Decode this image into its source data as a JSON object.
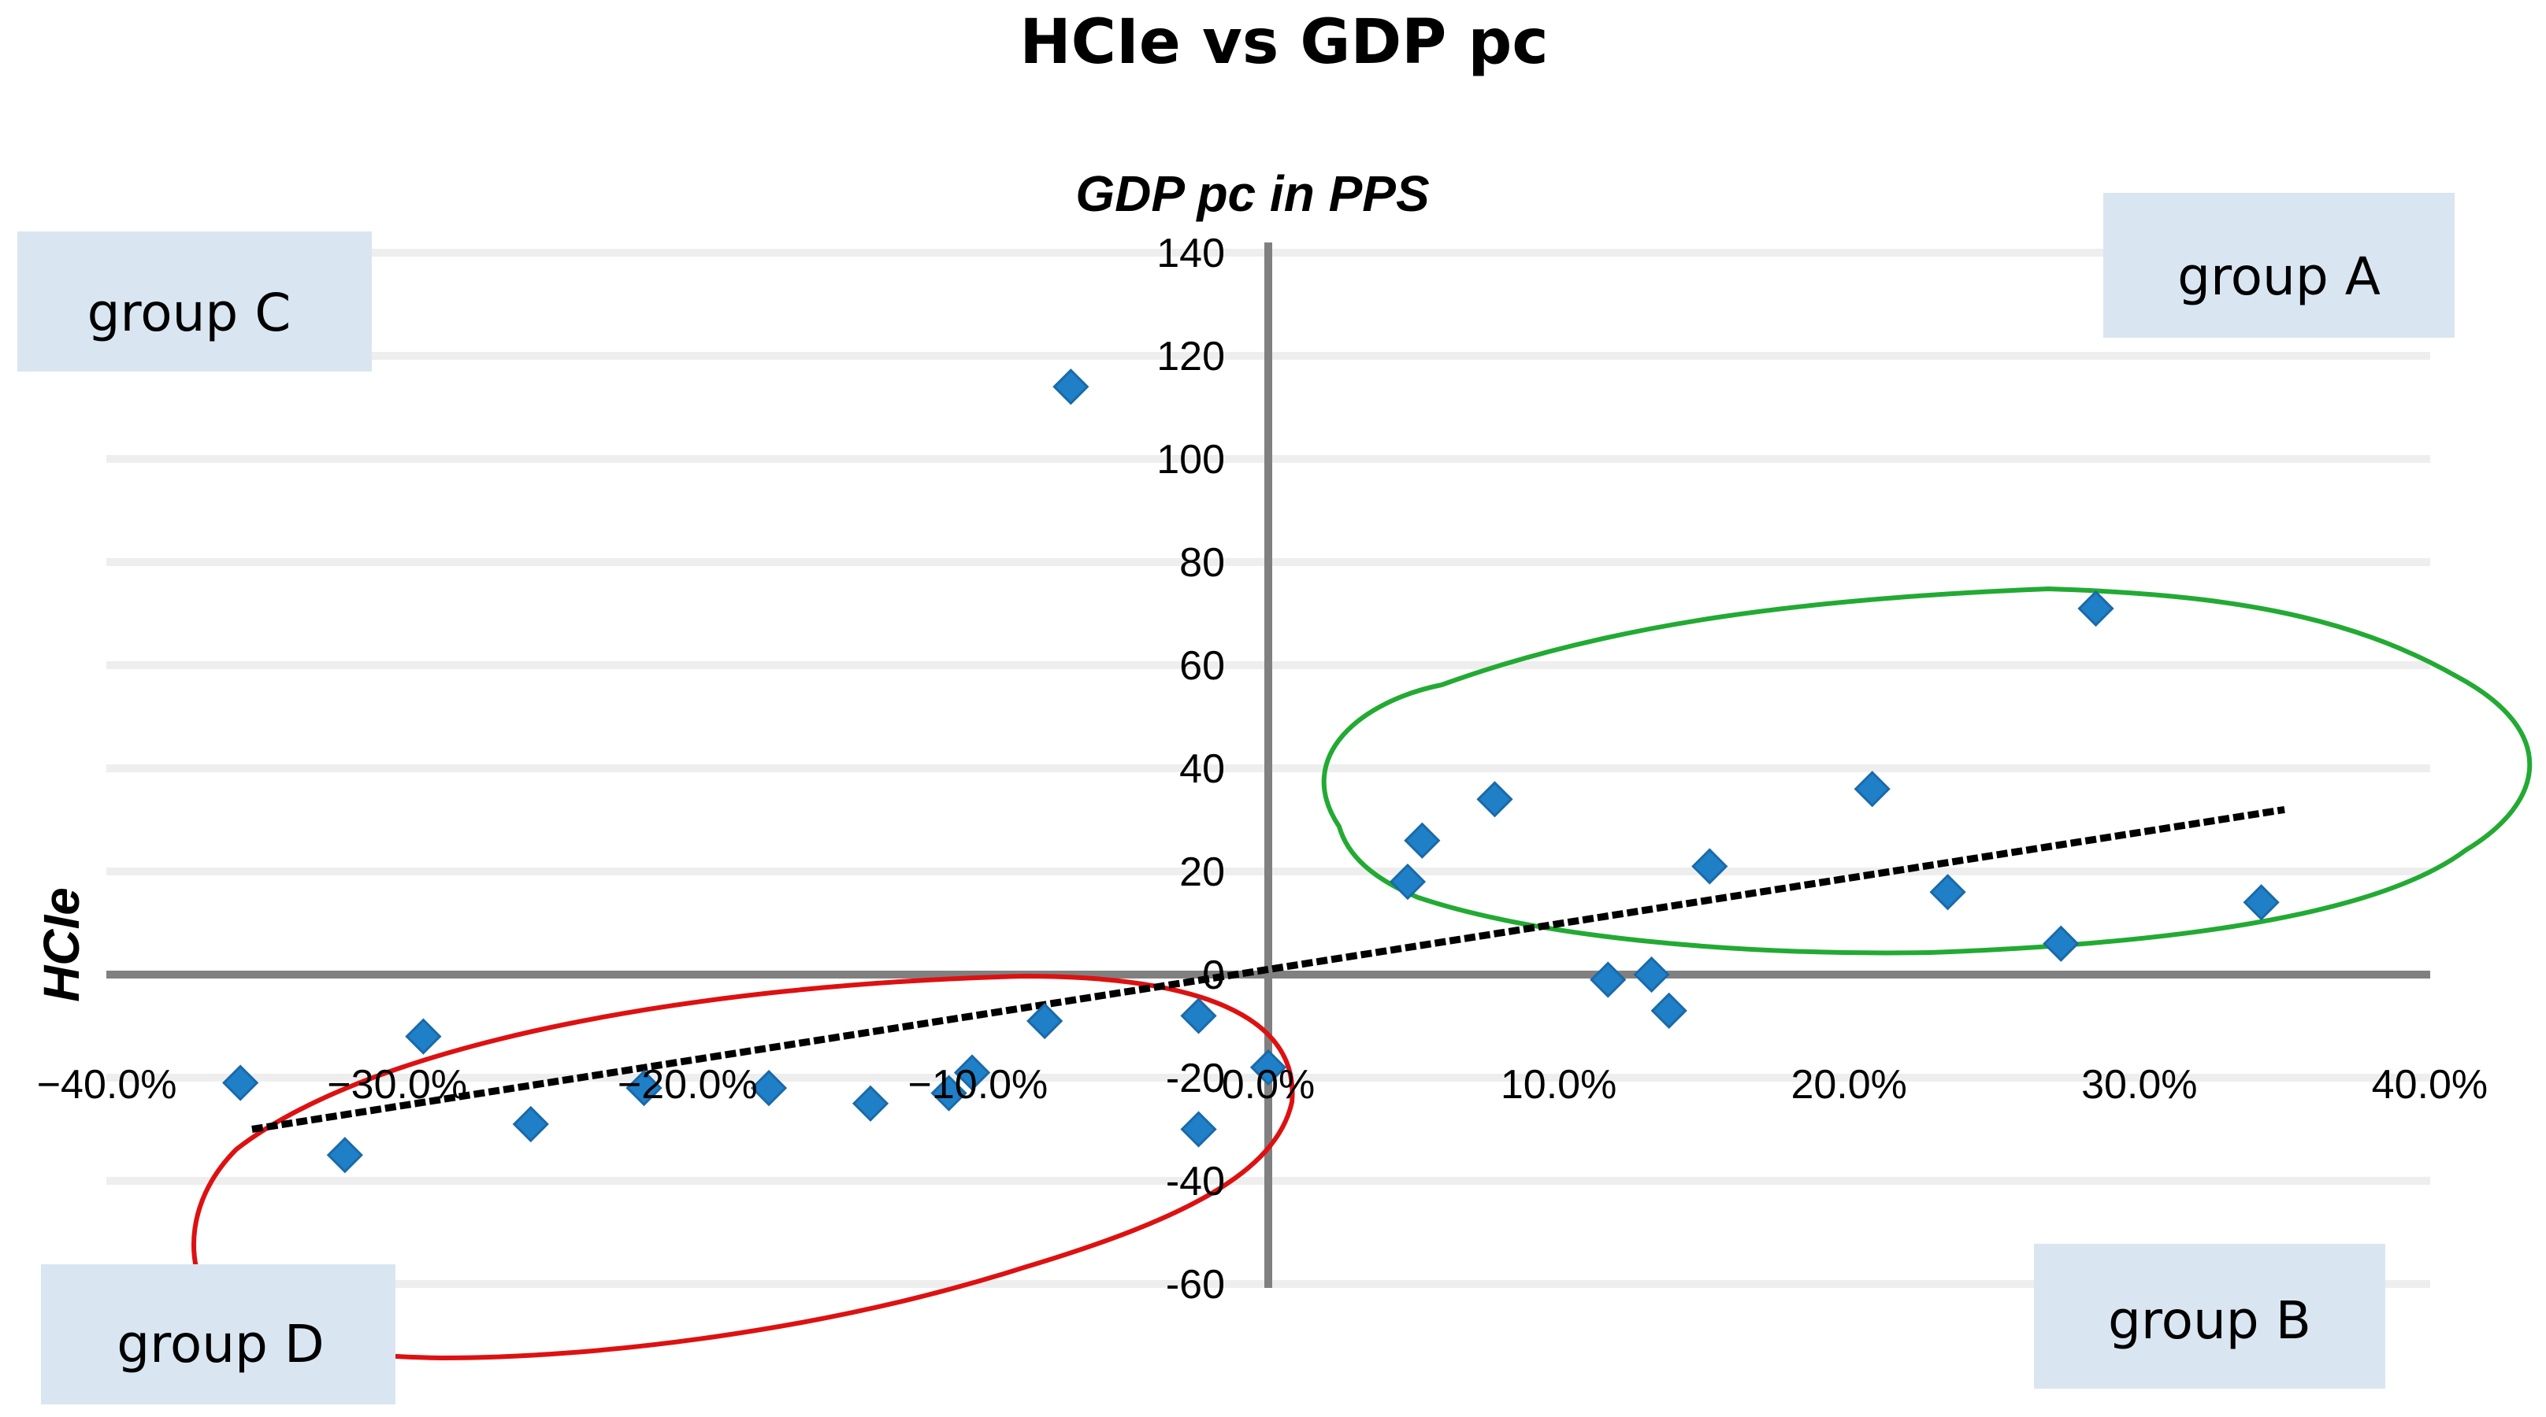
{
  "chart_data": {
    "type": "scatter",
    "title": "HCIe vs GDP pc",
    "xlabel": "GDP pc in PPS",
    "ylabel": "HCIe",
    "xlim": [
      -0.4,
      0.4
    ],
    "ylim": [
      -60,
      140
    ],
    "x_ticks": [
      -0.4,
      -0.3,
      -0.2,
      -0.1,
      0.0,
      0.1,
      0.2,
      0.3,
      0.4
    ],
    "x_tick_labels": [
      "−40.0%",
      "−30.0%",
      "−20.0%",
      "−10.0%",
      "0.0%",
      "10.0%",
      "20.0%",
      "30.0%",
      "40.0%"
    ],
    "y_ticks": [
      -60,
      -40,
      -20,
      0,
      20,
      40,
      60,
      80,
      100,
      120,
      140
    ],
    "y_tick_labels": [
      "-60",
      "-40",
      "-20",
      "0",
      "20",
      "40",
      "60",
      "80",
      "100",
      "120",
      "140"
    ],
    "grid": true,
    "points": [
      {
        "x": -0.354,
        "y": -21
      },
      {
        "x": -0.318,
        "y": -35
      },
      {
        "x": -0.291,
        "y": -12
      },
      {
        "x": -0.254,
        "y": -29
      },
      {
        "x": -0.215,
        "y": -22
      },
      {
        "x": -0.172,
        "y": -22
      },
      {
        "x": -0.137,
        "y": -25
      },
      {
        "x": -0.11,
        "y": -23
      },
      {
        "x": -0.102,
        "y": -19
      },
      {
        "x": -0.077,
        "y": -9
      },
      {
        "x": -0.068,
        "y": 114
      },
      {
        "x": -0.024,
        "y": -8
      },
      {
        "x": -0.024,
        "y": -30
      },
      {
        "x": 0.0,
        "y": -18
      },
      {
        "x": 0.048,
        "y": 18
      },
      {
        "x": 0.053,
        "y": 26
      },
      {
        "x": 0.078,
        "y": 34
      },
      {
        "x": 0.117,
        "y": -1
      },
      {
        "x": 0.132,
        "y": 0
      },
      {
        "x": 0.138,
        "y": -7
      },
      {
        "x": 0.152,
        "y": 21
      },
      {
        "x": 0.208,
        "y": 36
      },
      {
        "x": 0.234,
        "y": 16
      },
      {
        "x": 0.273,
        "y": 6
      },
      {
        "x": 0.285,
        "y": 71
      },
      {
        "x": 0.342,
        "y": 14
      }
    ],
    "trendline": {
      "x": [
        -0.35,
        0.35
      ],
      "y": [
        -30,
        32
      ],
      "style": "dashed",
      "color": "#000000"
    },
    "point_color": "#1f80c8",
    "annotations": [
      {
        "label": "group A",
        "quadrant": "top-right"
      },
      {
        "label": "group B",
        "quadrant": "bottom-right"
      },
      {
        "label": "group C",
        "quadrant": "top-left"
      },
      {
        "label": "group D",
        "quadrant": "bottom-left"
      }
    ],
    "highlight_colors": {
      "group_a_ellipse": "#22aa33",
      "group_d_ellipse": "#dd1111"
    },
    "label_box_color": "#d9e6f1"
  }
}
